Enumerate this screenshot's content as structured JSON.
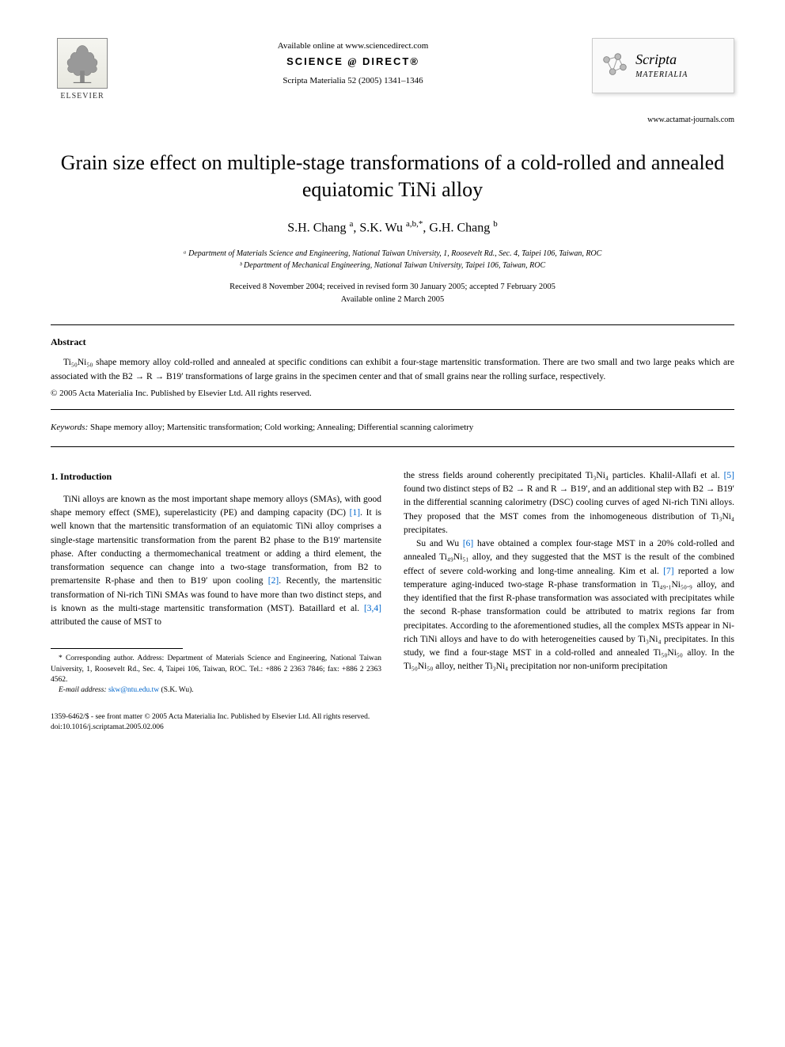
{
  "header": {
    "elsevier_label": "ELSEVIER",
    "available_online": "Available online at www.sciencedirect.com",
    "science_direct": "SCIENCE",
    "science_direct_at": "@",
    "science_direct_2": "DIRECT®",
    "citation": "Scripta Materialia 52 (2005) 1341–1346",
    "journal_scripta": "Scripta",
    "journal_materialia": "MATERIALIA",
    "journal_url": "www.actamat-journals.com"
  },
  "article": {
    "title": "Grain size effect on multiple-stage transformations of a cold-rolled and annealed equiatomic TiNi alloy",
    "authors_html": "S.H. Chang <sup>a</sup>, S.K. Wu <sup>a,b,*</sup>, G.H. Chang <sup>b</sup>",
    "affil_a": "ᵃ Department of Materials Science and Engineering, National Taiwan University, 1, Roosevelt Rd., Sec. 4, Taipei 106, Taiwan, ROC",
    "affil_b": "ᵇ Department of Mechanical Engineering, National Taiwan University, Taipei 106, Taiwan, ROC",
    "dates_line1": "Received 8 November 2004; received in revised form 30 January 2005; accepted 7 February 2005",
    "dates_line2": "Available online 2 March 2005"
  },
  "abstract": {
    "heading": "Abstract",
    "text": "Ti₅₀Ni₅₀ shape memory alloy cold-rolled and annealed at specific conditions can exhibit a four-stage martensitic transformation. There are two small and two large peaks which are associated with the B2 → R → B19′ transformations of large grains in the specimen center and that of small grains near the rolling surface, respectively.",
    "copyright": "© 2005 Acta Materialia Inc. Published by Elsevier Ltd. All rights reserved."
  },
  "keywords": {
    "label": "Keywords:",
    "text": " Shape memory alloy; Martensitic transformation; Cold working; Annealing; Differential scanning calorimetry"
  },
  "body": {
    "section_heading": "1. Introduction",
    "col1_p1_a": "TiNi alloys are known as the most important shape memory alloys (SMAs), with good shape memory effect (SME), superelasticity (PE) and damping capacity (DC) ",
    "col1_ref1": "[1]",
    "col1_p1_b": ". It is well known that the martensitic transformation of an equiatomic TiNi alloy comprises a single-stage martensitic transformation from the parent B2 phase to the B19′ martensite phase. After conducting a thermomechanical treatment or adding a third element, the transformation sequence can change into a two-stage transformation, from B2 to premartensite R-phase and then to B19′ upon cooling ",
    "col1_ref2": "[2]",
    "col1_p1_c": ". Recently, the martensitic transformation of Ni-rich TiNi SMAs was found to have more than two distinct steps, and is known as the multi-stage martensitic transformation (MST). Bataillard et al. ",
    "col1_ref34": "[3,4]",
    "col1_p1_d": " attributed the cause of MST to",
    "col2_p1_a": "the stress fields around coherently precipitated Ti₃Ni₄ particles. Khalil-Allafi et al. ",
    "col2_ref5": "[5]",
    "col2_p1_b": " found two distinct steps of B2 → R and R → B19′, and an additional step with B2 → B19′ in the differential scanning calorimetry (DSC) cooling curves of aged Ni-rich TiNi alloys. They proposed that the MST comes from the inhomogeneous distribution of Ti₃Ni₄ precipitates.",
    "col2_p2_a": "Su and Wu ",
    "col2_ref6": "[6]",
    "col2_p2_b": " have obtained a complex four-stage MST in a 20% cold-rolled and annealed Ti₄₉Ni₅₁ alloy, and they suggested that the MST is the result of the combined effect of severe cold-working and long-time annealing. Kim et al. ",
    "col2_ref7": "[7]",
    "col2_p2_c": " reported a low temperature aging-induced two-stage R-phase transformation in Ti₄₉.₁Ni₅₀.₉ alloy, and they identified that the first R-phase transformation was associated with precipitates while the second R-phase transformation could be attributed to matrix regions far from precipitates. According to the aforementioned studies, all the complex MSTs appear in Ni-rich TiNi alloys and have to do with heterogeneities caused by Ti₃Ni₄ precipitates. In this study, we find a four-stage MST in a cold-rolled and annealed Ti₅₀Ni₅₀ alloy. In the Ti₅₀Ni₅₀ alloy, neither Ti₃Ni₄ precipitation nor non-uniform precipitation"
  },
  "footnote": {
    "corresponding": "* Corresponding author. Address: Department of Materials Science and Engineering, National Taiwan University, 1, Roosevelt Rd., Sec. 4, Taipei 106, Taiwan, ROC. Tel.: +886 2 2363 7846; fax: +886 2 2363 4562.",
    "email_label": "E-mail address:",
    "email": " skw@ntu.edu.tw ",
    "email_suffix": "(S.K. Wu)."
  },
  "footer": {
    "line1": "1359-6462/$ - see front matter © 2005 Acta Materialia Inc. Published by Elsevier Ltd. All rights reserved.",
    "line2": "doi:10.1016/j.scriptamat.2005.02.006"
  },
  "colors": {
    "text": "#000000",
    "link": "#0066cc",
    "border": "#000000",
    "logo_border": "#cccccc",
    "background": "#ffffff"
  }
}
